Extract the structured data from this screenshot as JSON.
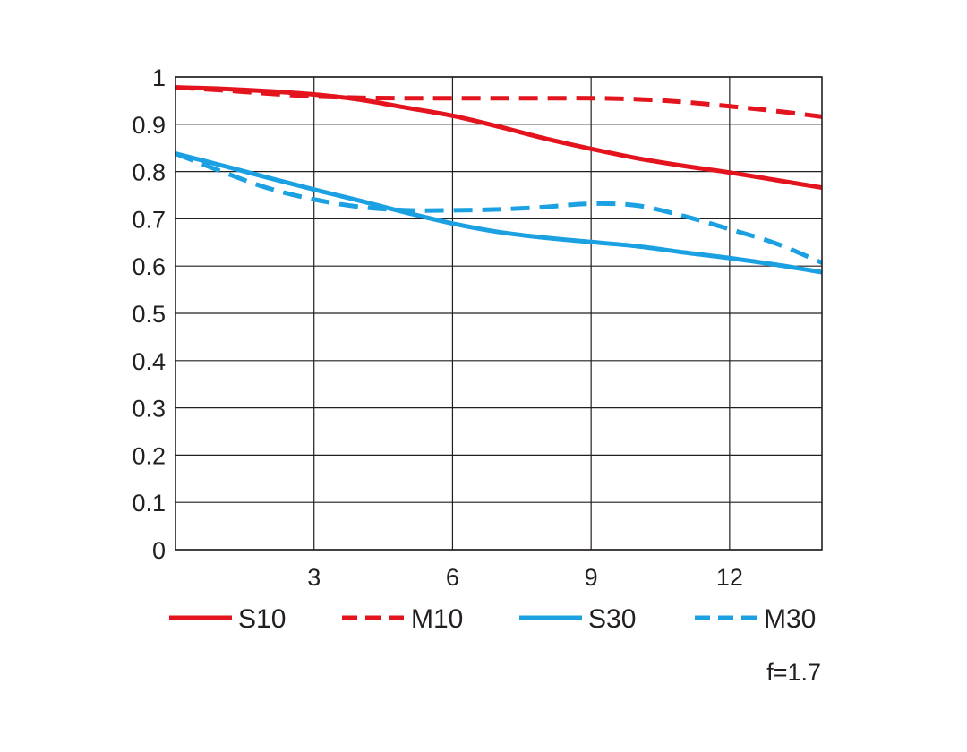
{
  "chart_data": {
    "type": "line",
    "note": "f=1.7",
    "xlim": [
      0,
      14
    ],
    "ylim": [
      0,
      1
    ],
    "x_ticks": [
      3,
      6,
      9,
      12
    ],
    "x_tick_labels": [
      "3",
      "6",
      "9",
      "12"
    ],
    "y_ticks": [
      0,
      0.1,
      0.2,
      0.3,
      0.4,
      0.5,
      0.6,
      0.7,
      0.8,
      0.9,
      1
    ],
    "y_tick_labels": [
      "0",
      "0.1",
      "0.2",
      "0.3",
      "0.4",
      "0.5",
      "0.6",
      "0.7",
      "0.8",
      "0.9",
      "1"
    ],
    "grid": true,
    "legend_position": "bottom",
    "series": [
      {
        "name": "S10",
        "color": "#e3141d",
        "dashed": false,
        "points": [
          [
            0,
            0.978
          ],
          [
            1,
            0.975
          ],
          [
            2,
            0.97
          ],
          [
            3,
            0.963
          ],
          [
            4,
            0.952
          ],
          [
            5,
            0.935
          ],
          [
            6,
            0.918
          ],
          [
            7,
            0.895
          ],
          [
            8,
            0.87
          ],
          [
            9,
            0.848
          ],
          [
            10,
            0.828
          ],
          [
            11,
            0.812
          ],
          [
            12,
            0.798
          ],
          [
            13,
            0.782
          ],
          [
            14,
            0.766
          ]
        ]
      },
      {
        "name": "M10",
        "color": "#e3141d",
        "dashed": true,
        "points": [
          [
            0,
            0.978
          ],
          [
            1,
            0.972
          ],
          [
            2,
            0.965
          ],
          [
            3,
            0.959
          ],
          [
            4,
            0.956
          ],
          [
            5,
            0.955
          ],
          [
            6,
            0.955
          ],
          [
            7,
            0.955
          ],
          [
            8,
            0.955
          ],
          [
            9,
            0.955
          ],
          [
            10,
            0.953
          ],
          [
            11,
            0.947
          ],
          [
            12,
            0.938
          ],
          [
            13,
            0.928
          ],
          [
            14,
            0.916
          ]
        ]
      },
      {
        "name": "S30",
        "color": "#1ba1e2",
        "dashed": false,
        "points": [
          [
            0,
            0.838
          ],
          [
            1,
            0.813
          ],
          [
            2,
            0.787
          ],
          [
            3,
            0.762
          ],
          [
            4,
            0.738
          ],
          [
            5,
            0.713
          ],
          [
            6,
            0.69
          ],
          [
            7,
            0.672
          ],
          [
            8,
            0.66
          ],
          [
            9,
            0.651
          ],
          [
            10,
            0.642
          ],
          [
            11,
            0.629
          ],
          [
            12,
            0.617
          ],
          [
            13,
            0.603
          ],
          [
            14,
            0.587
          ]
        ]
      },
      {
        "name": "M30",
        "color": "#1ba1e2",
        "dashed": true,
        "points": [
          [
            0,
            0.838
          ],
          [
            1,
            0.8
          ],
          [
            2,
            0.765
          ],
          [
            3,
            0.741
          ],
          [
            4,
            0.725
          ],
          [
            5,
            0.718
          ],
          [
            6,
            0.718
          ],
          [
            7,
            0.72
          ],
          [
            8,
            0.725
          ],
          [
            9,
            0.732
          ],
          [
            10,
            0.728
          ],
          [
            11,
            0.706
          ],
          [
            12,
            0.678
          ],
          [
            13,
            0.648
          ],
          [
            14,
            0.607
          ]
        ]
      }
    ]
  }
}
